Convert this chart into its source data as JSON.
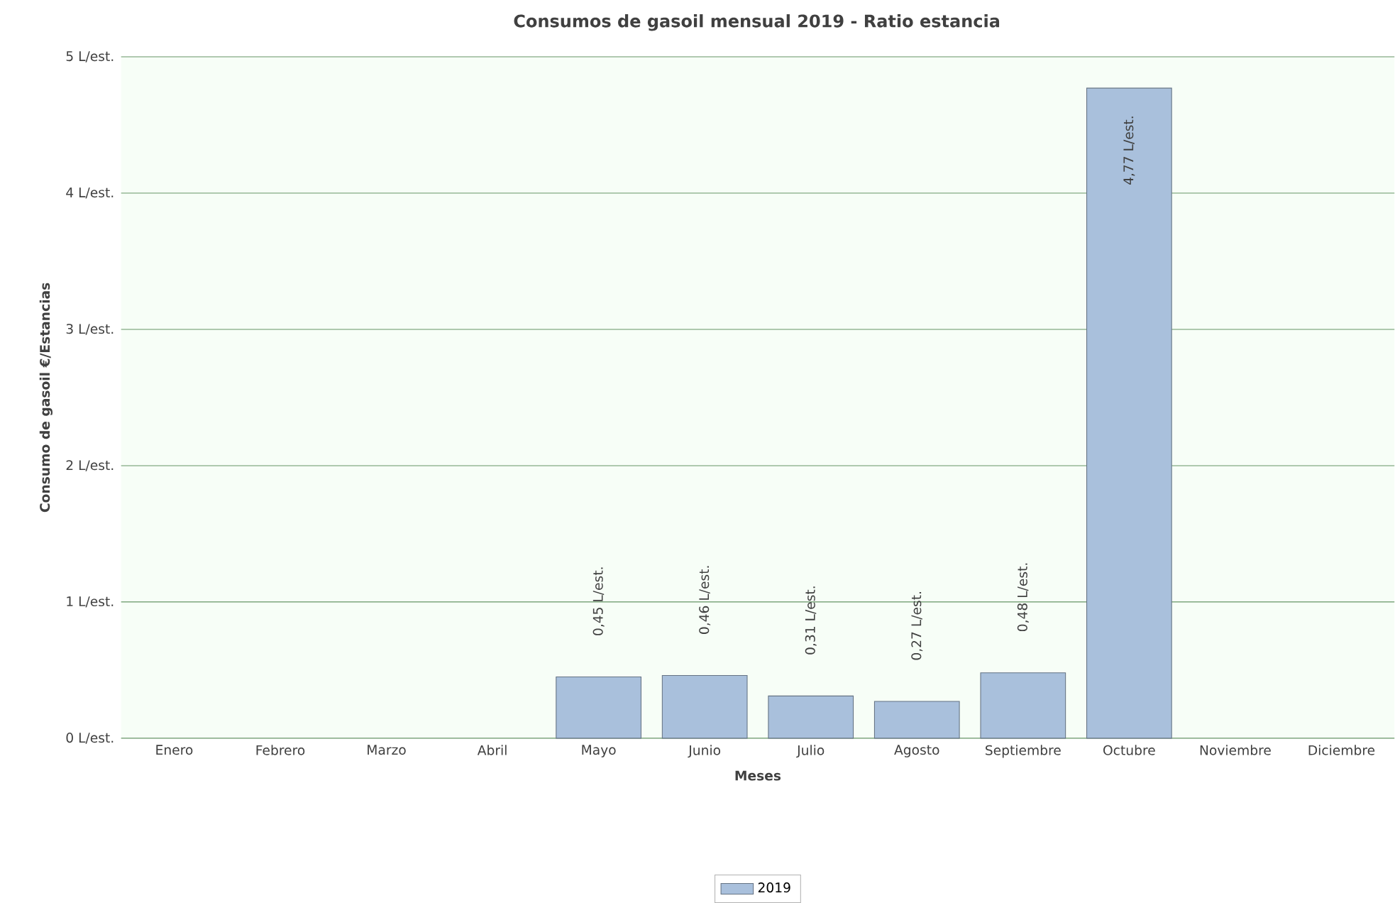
{
  "chart_data": {
    "type": "bar",
    "title": "Consumos de gasoil mensual 2019 - Ratio estancia",
    "xlabel": "Meses",
    "ylabel": "Consumo de gasoil €/Estancias",
    "categories": [
      "Enero",
      "Febrero",
      "Marzo",
      "Abril",
      "Mayo",
      "Junio",
      "Julio",
      "Agosto",
      "Septiembre",
      "Octubre",
      "Noviembre",
      "Diciembre"
    ],
    "series": [
      {
        "name": "2019",
        "color": "#a9c0dc",
        "values": [
          null,
          null,
          null,
          null,
          0.45,
          0.46,
          0.31,
          0.27,
          0.48,
          4.77,
          null,
          null
        ],
        "value_labels": [
          null,
          null,
          null,
          null,
          "0,45 L/est.",
          "0,46 L/est.",
          "0,31 L/est.",
          "0,27 L/est.",
          "0,48 L/est.",
          "4,77 L/est.",
          null,
          null
        ]
      }
    ],
    "ylim": [
      0,
      5
    ],
    "yticks": [
      {
        "value": 0,
        "label": "0 L/est."
      },
      {
        "value": 1,
        "label": "1 L/est."
      },
      {
        "value": 2,
        "label": "2 L/est."
      },
      {
        "value": 3,
        "label": "3 L/est."
      },
      {
        "value": 4,
        "label": "4 L/est."
      },
      {
        "value": 5,
        "label": "5 L/est."
      }
    ],
    "grid": "y",
    "legend": "bottom"
  }
}
